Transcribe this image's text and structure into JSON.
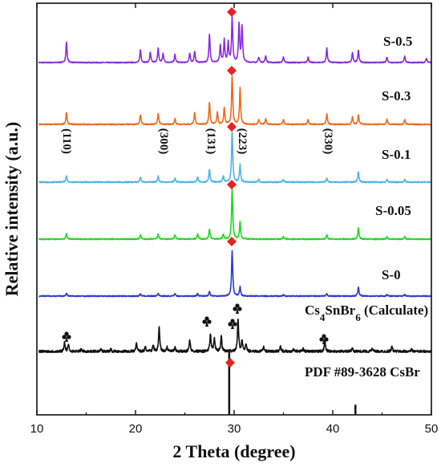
{
  "chart_data": {
    "type": "line",
    "xlabel": "2 Theta (degree)",
    "ylabel": "Relative intensity (a.u.)",
    "xlim": [
      10,
      50
    ],
    "x_ticks": [
      "10",
      "20",
      "30",
      "40",
      "50"
    ],
    "grid": false,
    "series": [
      {
        "name": "S-0.5",
        "color": "#8a2be2",
        "peaks": [
          [
            13.0,
            0.45
          ],
          [
            20.5,
            0.28
          ],
          [
            21.5,
            0.22
          ],
          [
            22.3,
            0.32
          ],
          [
            22.8,
            0.2
          ],
          [
            24.0,
            0.18
          ],
          [
            25.5,
            0.2
          ],
          [
            26.0,
            0.25
          ],
          [
            27.5,
            0.62
          ],
          [
            28.6,
            0.38
          ],
          [
            29.0,
            0.5
          ],
          [
            29.4,
            0.45
          ],
          [
            29.8,
            1.0
          ],
          [
            30.5,
            0.85
          ],
          [
            30.8,
            0.8
          ],
          [
            32.5,
            0.12
          ],
          [
            33.2,
            0.15
          ],
          [
            35.0,
            0.12
          ],
          [
            37.5,
            0.12
          ],
          [
            39.4,
            0.32
          ],
          [
            42.0,
            0.22
          ],
          [
            42.6,
            0.28
          ],
          [
            45.5,
            0.12
          ],
          [
            47.3,
            0.15
          ],
          [
            49.5,
            0.1
          ]
        ]
      },
      {
        "name": "S-0.3",
        "color": "#ee6a1c",
        "peaks": [
          [
            13.0,
            0.25
          ],
          [
            20.5,
            0.2
          ],
          [
            22.3,
            0.22
          ],
          [
            24.0,
            0.12
          ],
          [
            26.0,
            0.25
          ],
          [
            27.5,
            0.45
          ],
          [
            28.3,
            0.25
          ],
          [
            29.0,
            0.35
          ],
          [
            29.8,
            1.0
          ],
          [
            30.6,
            0.75
          ],
          [
            32.5,
            0.1
          ],
          [
            33.2,
            0.12
          ],
          [
            35.0,
            0.1
          ],
          [
            37.5,
            0.1
          ],
          [
            39.4,
            0.22
          ],
          [
            42.0,
            0.15
          ],
          [
            42.6,
            0.2
          ],
          [
            45.5,
            0.1
          ],
          [
            47.3,
            0.1
          ]
        ]
      },
      {
        "name": "S-0.1",
        "color": "#4fb3e8",
        "peaks": [
          [
            13.0,
            0.12
          ],
          [
            20.5,
            0.1
          ],
          [
            22.3,
            0.12
          ],
          [
            24.0,
            0.08
          ],
          [
            26.3,
            0.1
          ],
          [
            27.5,
            0.25
          ],
          [
            28.9,
            0.12
          ],
          [
            29.8,
            1.0
          ],
          [
            30.6,
            0.35
          ],
          [
            32.5,
            0.05
          ],
          [
            35.0,
            0.05
          ],
          [
            39.4,
            0.08
          ],
          [
            42.6,
            0.2
          ],
          [
            45.5,
            0.05
          ],
          [
            47.3,
            0.05
          ]
        ]
      },
      {
        "name": "S-0.05",
        "color": "#1fd81f",
        "peaks": [
          [
            13.0,
            0.1
          ],
          [
            20.5,
            0.08
          ],
          [
            22.3,
            0.1
          ],
          [
            24.0,
            0.08
          ],
          [
            26.3,
            0.1
          ],
          [
            27.5,
            0.2
          ],
          [
            28.9,
            0.1
          ],
          [
            29.8,
            1.0
          ],
          [
            30.6,
            0.35
          ],
          [
            35.0,
            0.05
          ],
          [
            39.4,
            0.08
          ],
          [
            42.6,
            0.22
          ],
          [
            45.5,
            0.05
          ],
          [
            47.3,
            0.05
          ]
        ]
      },
      {
        "name": "S-0",
        "color": "#2a3ad6",
        "peaks": [
          [
            13.0,
            0.06
          ],
          [
            20.5,
            0.05
          ],
          [
            22.3,
            0.06
          ],
          [
            24.0,
            0.05
          ],
          [
            26.3,
            0.05
          ],
          [
            27.5,
            0.1
          ],
          [
            29.8,
            1.0
          ],
          [
            30.6,
            0.2
          ],
          [
            35.0,
            0.03
          ],
          [
            39.4,
            0.05
          ],
          [
            42.6,
            0.2
          ],
          [
            45.5,
            0.03
          ],
          [
            47.3,
            0.03
          ]
        ]
      },
      {
        "name": "Cs4SnBr6 (Calculate)",
        "color": "#111111",
        "peaks": [
          [
            12.8,
            0.2
          ],
          [
            13.2,
            0.15
          ],
          [
            14.5,
            0.05
          ],
          [
            16.5,
            0.05
          ],
          [
            17.5,
            0.05
          ],
          [
            20.1,
            0.2
          ],
          [
            21.0,
            0.1
          ],
          [
            21.8,
            0.15
          ],
          [
            22.4,
            0.55
          ],
          [
            23.2,
            0.1
          ],
          [
            24.0,
            0.08
          ],
          [
            25.5,
            0.25
          ],
          [
            27.6,
            0.4
          ],
          [
            28.0,
            0.3
          ],
          [
            28.7,
            0.35
          ],
          [
            30.4,
            0.75
          ],
          [
            30.8,
            0.25
          ],
          [
            31.2,
            0.15
          ],
          [
            33.0,
            0.1
          ],
          [
            34.7,
            0.12
          ],
          [
            36.0,
            0.06
          ],
          [
            37.0,
            0.06
          ],
          [
            39.2,
            0.25
          ],
          [
            42.0,
            0.08
          ],
          [
            44.0,
            0.06
          ],
          [
            46.0,
            0.12
          ],
          [
            48.0,
            0.05
          ]
        ]
      },
      {
        "name": "PDF #89-3628 CsBr",
        "color": "#111111",
        "sticks": [
          [
            29.5,
            1.0
          ],
          [
            42.3,
            0.16
          ]
        ]
      }
    ],
    "hkl_labels": [
      "(110)",
      "(300)",
      "(131)",
      "(223)",
      "(330)"
    ]
  }
}
